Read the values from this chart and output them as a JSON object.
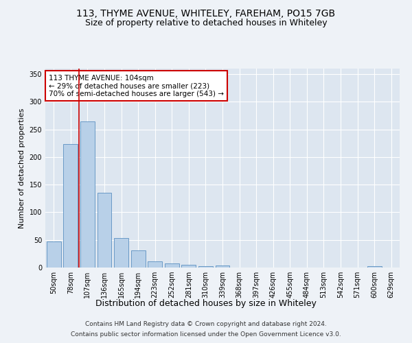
{
  "title_line1": "113, THYME AVENUE, WHITELEY, FAREHAM, PO15 7GB",
  "title_line2": "Size of property relative to detached houses in Whiteley",
  "xlabel": "Distribution of detached houses by size in Whiteley",
  "ylabel": "Number of detached properties",
  "footer_line1": "Contains HM Land Registry data © Crown copyright and database right 2024.",
  "footer_line2": "Contains public sector information licensed under the Open Government Licence v3.0.",
  "categories": [
    "50sqm",
    "78sqm",
    "107sqm",
    "136sqm",
    "165sqm",
    "194sqm",
    "223sqm",
    "252sqm",
    "281sqm",
    "310sqm",
    "339sqm",
    "368sqm",
    "397sqm",
    "426sqm",
    "455sqm",
    "484sqm",
    "513sqm",
    "542sqm",
    "571sqm",
    "600sqm",
    "629sqm"
  ],
  "values": [
    47,
    223,
    265,
    135,
    54,
    31,
    11,
    8,
    5,
    2,
    4,
    0,
    0,
    0,
    0,
    0,
    0,
    0,
    0,
    2,
    0
  ],
  "bar_color": "#b8d0e8",
  "bar_edge_color": "#5a8fc0",
  "vline_color": "#cc0000",
  "vline_x": 2,
  "annotation_text": "113 THYME AVENUE: 104sqm\n← 29% of detached houses are smaller (223)\n70% of semi-detached houses are larger (543) →",
  "annotation_box_color": "#ffffff",
  "annotation_box_edge_color": "#cc0000",
  "ylim": [
    0,
    360
  ],
  "yticks": [
    0,
    50,
    100,
    150,
    200,
    250,
    300,
    350
  ],
  "background_color": "#eef2f7",
  "plot_bg_color": "#dde6f0",
  "grid_color": "#ffffff",
  "title_fontsize": 10,
  "subtitle_fontsize": 9,
  "tick_fontsize": 7,
  "ylabel_fontsize": 8,
  "xlabel_fontsize": 9,
  "footer_fontsize": 6.5,
  "ann_fontsize": 7.5
}
